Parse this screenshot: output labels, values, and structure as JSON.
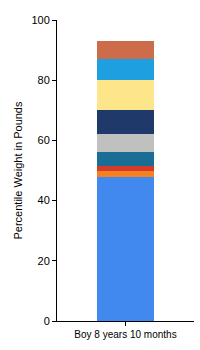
{
  "chart_data": {
    "type": "bar",
    "stacked": true,
    "categories": [
      "Boy 8 years 10 months"
    ],
    "ylabel": "Percentile Weight in Pounds",
    "series": [
      {
        "color": "#4289ef",
        "values": [
          48
        ]
      },
      {
        "color": "#f58220",
        "values": [
          2
        ]
      },
      {
        "color": "#d63a2a",
        "values": [
          1.5
        ]
      },
      {
        "color": "#1a6e96",
        "values": [
          4.5
        ]
      },
      {
        "color": "#c0c0c0",
        "values": [
          6
        ]
      },
      {
        "color": "#1f3a6a",
        "values": [
          8
        ]
      },
      {
        "color": "#fde68a",
        "values": [
          10
        ]
      },
      {
        "color": "#1ea0e0",
        "values": [
          7
        ]
      },
      {
        "color": "#cd6c4a",
        "values": [
          6
        ]
      }
    ],
    "ylim": [
      0,
      100
    ],
    "yticks": [
      0,
      20,
      40,
      60,
      80,
      100
    ],
    "grid": false
  }
}
